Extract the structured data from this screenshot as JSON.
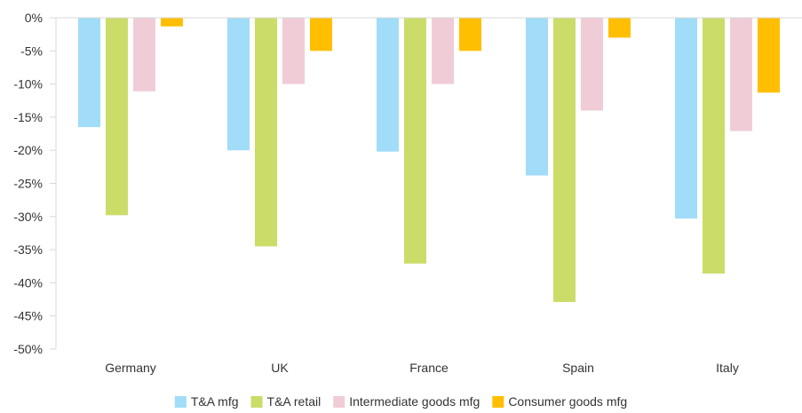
{
  "chart_data": {
    "type": "bar",
    "title": "",
    "xlabel": "",
    "ylabel": "",
    "ylim": [
      -50,
      0
    ],
    "yticks": [
      0,
      -5,
      -10,
      -15,
      -20,
      -25,
      -30,
      -35,
      -40,
      -45,
      -50
    ],
    "ytick_suffix": "%",
    "grid": false,
    "legend_position": "bottom",
    "categories": [
      "Germany",
      "UK",
      "France",
      "Spain",
      "Italy"
    ],
    "series": [
      {
        "name": "T&A mfg",
        "color": "#a1dcf8",
        "values": [
          -16.5,
          -20.0,
          -20.2,
          -23.8,
          -30.3
        ]
      },
      {
        "name": "T&A retail",
        "color": "#cbdc69",
        "values": [
          -29.8,
          -34.5,
          -37.1,
          -42.9,
          -38.6
        ]
      },
      {
        "name": "Intermediate goods mfg",
        "color": "#f0ccd6",
        "values": [
          -11.1,
          -10.0,
          -10.0,
          -14.0,
          -17.1
        ]
      },
      {
        "name": "Consumer goods mfg",
        "color": "#ffbf00",
        "values": [
          -1.3,
          -5.0,
          -5.0,
          -3.0,
          -11.3
        ]
      }
    ]
  }
}
